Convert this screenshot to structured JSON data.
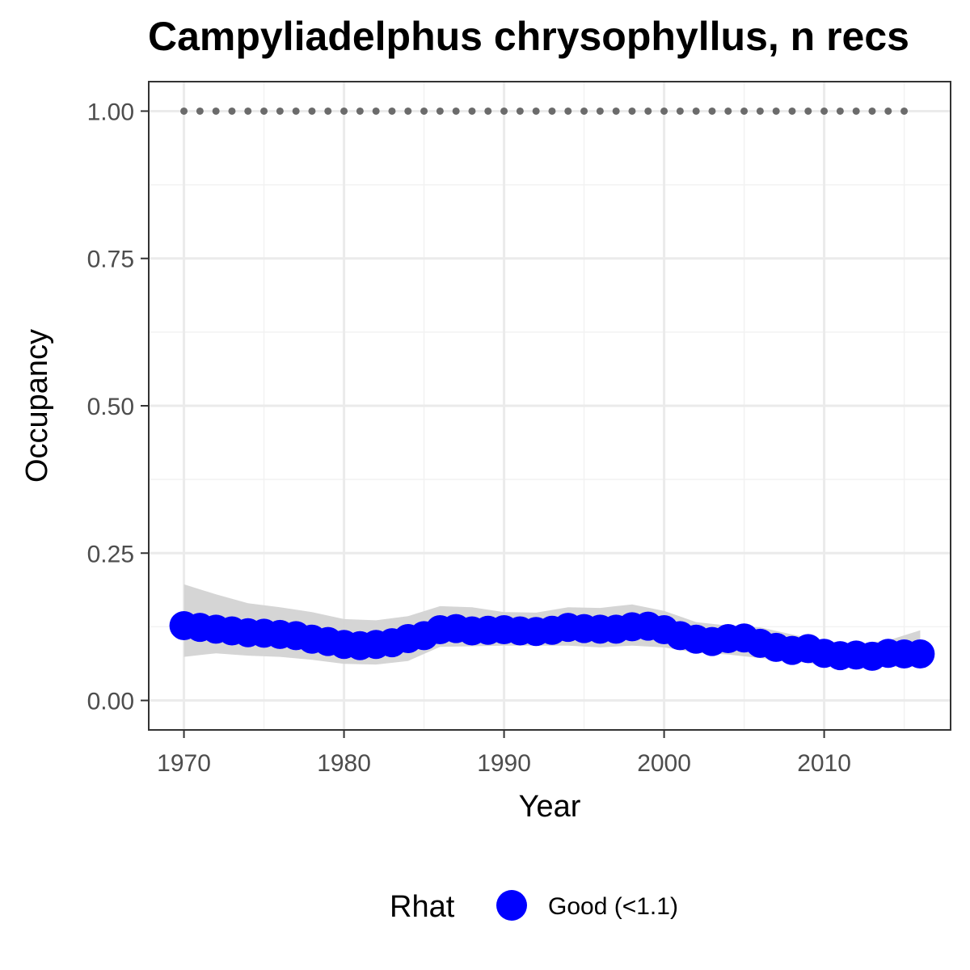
{
  "chart_data": {
    "type": "scatter",
    "title": "Campyliadelphus chrysophyllus, n recs",
    "xlabel": "Year",
    "ylabel": "Occupancy",
    "xlim": [
      1967.8,
      2017.9
    ],
    "ylim": [
      -0.05,
      1.05
    ],
    "x_ticks": [
      1970,
      1980,
      1990,
      2000,
      2010
    ],
    "x_tick_labels": [
      "1970",
      "1980",
      "1990",
      "2000",
      "2010"
    ],
    "y_ticks": [
      0,
      0.25,
      0.5,
      0.75,
      1.0
    ],
    "y_tick_labels": [
      "0.00",
      "0.25",
      "0.50",
      "0.75",
      "1.00"
    ],
    "grid": true,
    "legend": {
      "title": "Rhat",
      "position": "bottom",
      "entries": [
        "Good (<1.1)"
      ]
    },
    "series": [
      {
        "name": "Good (<1.1)",
        "kind": "points",
        "color": "#0000ff",
        "x": [
          1970,
          1971,
          1972,
          1973,
          1974,
          1975,
          1976,
          1977,
          1978,
          1979,
          1980,
          1981,
          1982,
          1983,
          1984,
          1985,
          1986,
          1987,
          1988,
          1989,
          1990,
          1991,
          1992,
          1993,
          1994,
          1995,
          1996,
          1997,
          1998,
          1999,
          2000,
          2001,
          2002,
          2003,
          2004,
          2005,
          2006,
          2007,
          2008,
          2009,
          2010,
          2011,
          2012,
          2013,
          2014,
          2015,
          2016
        ],
        "y": [
          0.127,
          0.124,
          0.121,
          0.118,
          0.115,
          0.114,
          0.112,
          0.11,
          0.104,
          0.1,
          0.095,
          0.093,
          0.095,
          0.098,
          0.105,
          0.11,
          0.12,
          0.122,
          0.118,
          0.119,
          0.12,
          0.118,
          0.117,
          0.119,
          0.124,
          0.122,
          0.121,
          0.121,
          0.125,
          0.126,
          0.12,
          0.11,
          0.104,
          0.1,
          0.105,
          0.106,
          0.097,
          0.09,
          0.085,
          0.088,
          0.08,
          0.076,
          0.077,
          0.075,
          0.08,
          0.079,
          0.079
        ]
      },
      {
        "name": "",
        "kind": "ribbon",
        "color": "#d3d3d3",
        "x": [
          1970,
          1972,
          1974,
          1976,
          1978,
          1980,
          1982,
          1984,
          1986,
          1988,
          1990,
          1992,
          1994,
          1996,
          1998,
          2000,
          2002,
          2004,
          2006,
          2008,
          2010,
          2012,
          2014,
          2016
        ],
        "upper": [
          0.197,
          0.18,
          0.165,
          0.158,
          0.15,
          0.138,
          0.136,
          0.143,
          0.16,
          0.158,
          0.15,
          0.149,
          0.158,
          0.157,
          0.163,
          0.152,
          0.133,
          0.127,
          0.124,
          0.112,
          0.101,
          0.096,
          0.102,
          0.119
        ],
        "lower": [
          0.074,
          0.08,
          0.076,
          0.074,
          0.069,
          0.062,
          0.061,
          0.067,
          0.091,
          0.092,
          0.093,
          0.093,
          0.093,
          0.09,
          0.093,
          0.09,
          0.081,
          0.078,
          0.072,
          0.067,
          0.06,
          0.06,
          0.057,
          0.057
        ]
      },
      {
        "name": "",
        "kind": "dotted-reference",
        "color": "#6b6b6b",
        "x": [
          1970,
          1971,
          1972,
          1973,
          1974,
          1975,
          1976,
          1977,
          1978,
          1979,
          1980,
          1981,
          1982,
          1983,
          1984,
          1985,
          1986,
          1987,
          1988,
          1989,
          1990,
          1991,
          1992,
          1993,
          1994,
          1995,
          1996,
          1997,
          1998,
          1999,
          2000,
          2001,
          2002,
          2003,
          2004,
          2005,
          2006,
          2007,
          2008,
          2009,
          2010,
          2011,
          2012,
          2013,
          2014,
          2015
        ],
        "y": 1.0
      }
    ]
  }
}
